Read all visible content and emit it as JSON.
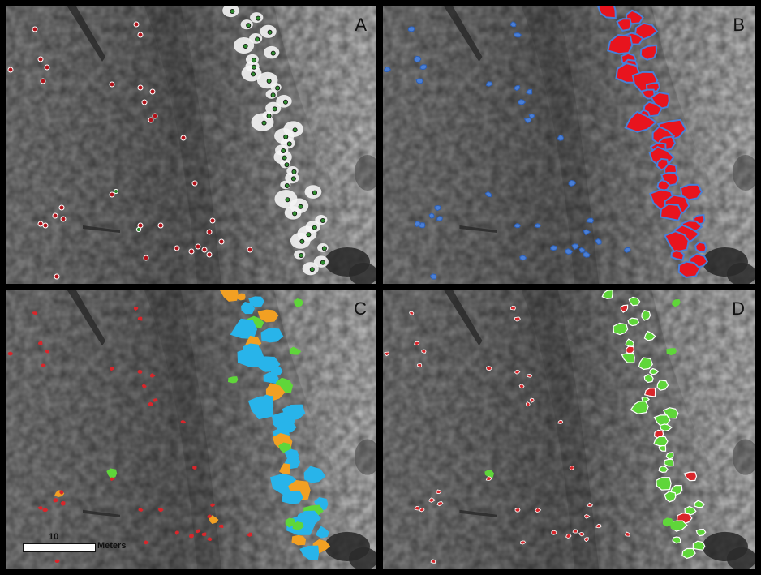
{
  "panels": [
    {
      "letter": "A",
      "overlay": "points"
    },
    {
      "letter": "B",
      "overlay": "segmented-polygons"
    },
    {
      "letter": "C",
      "overlay": "class-colored-polygons"
    },
    {
      "letter": "D",
      "overlay": "accuracy-colored-polygons"
    }
  ],
  "scalebar": {
    "value": "10",
    "unit": "Meters"
  },
  "colors": {
    "point_red": "#b3121a",
    "point_green": "#2e8b2e",
    "polygon_red": "#e8141e",
    "polygon_outline_blue": "#4a7fd6",
    "class_orange": "#f2a023",
    "class_cyan": "#28b4ea",
    "class_green": "#5fd63a",
    "class_red": "#d9262b"
  }
}
